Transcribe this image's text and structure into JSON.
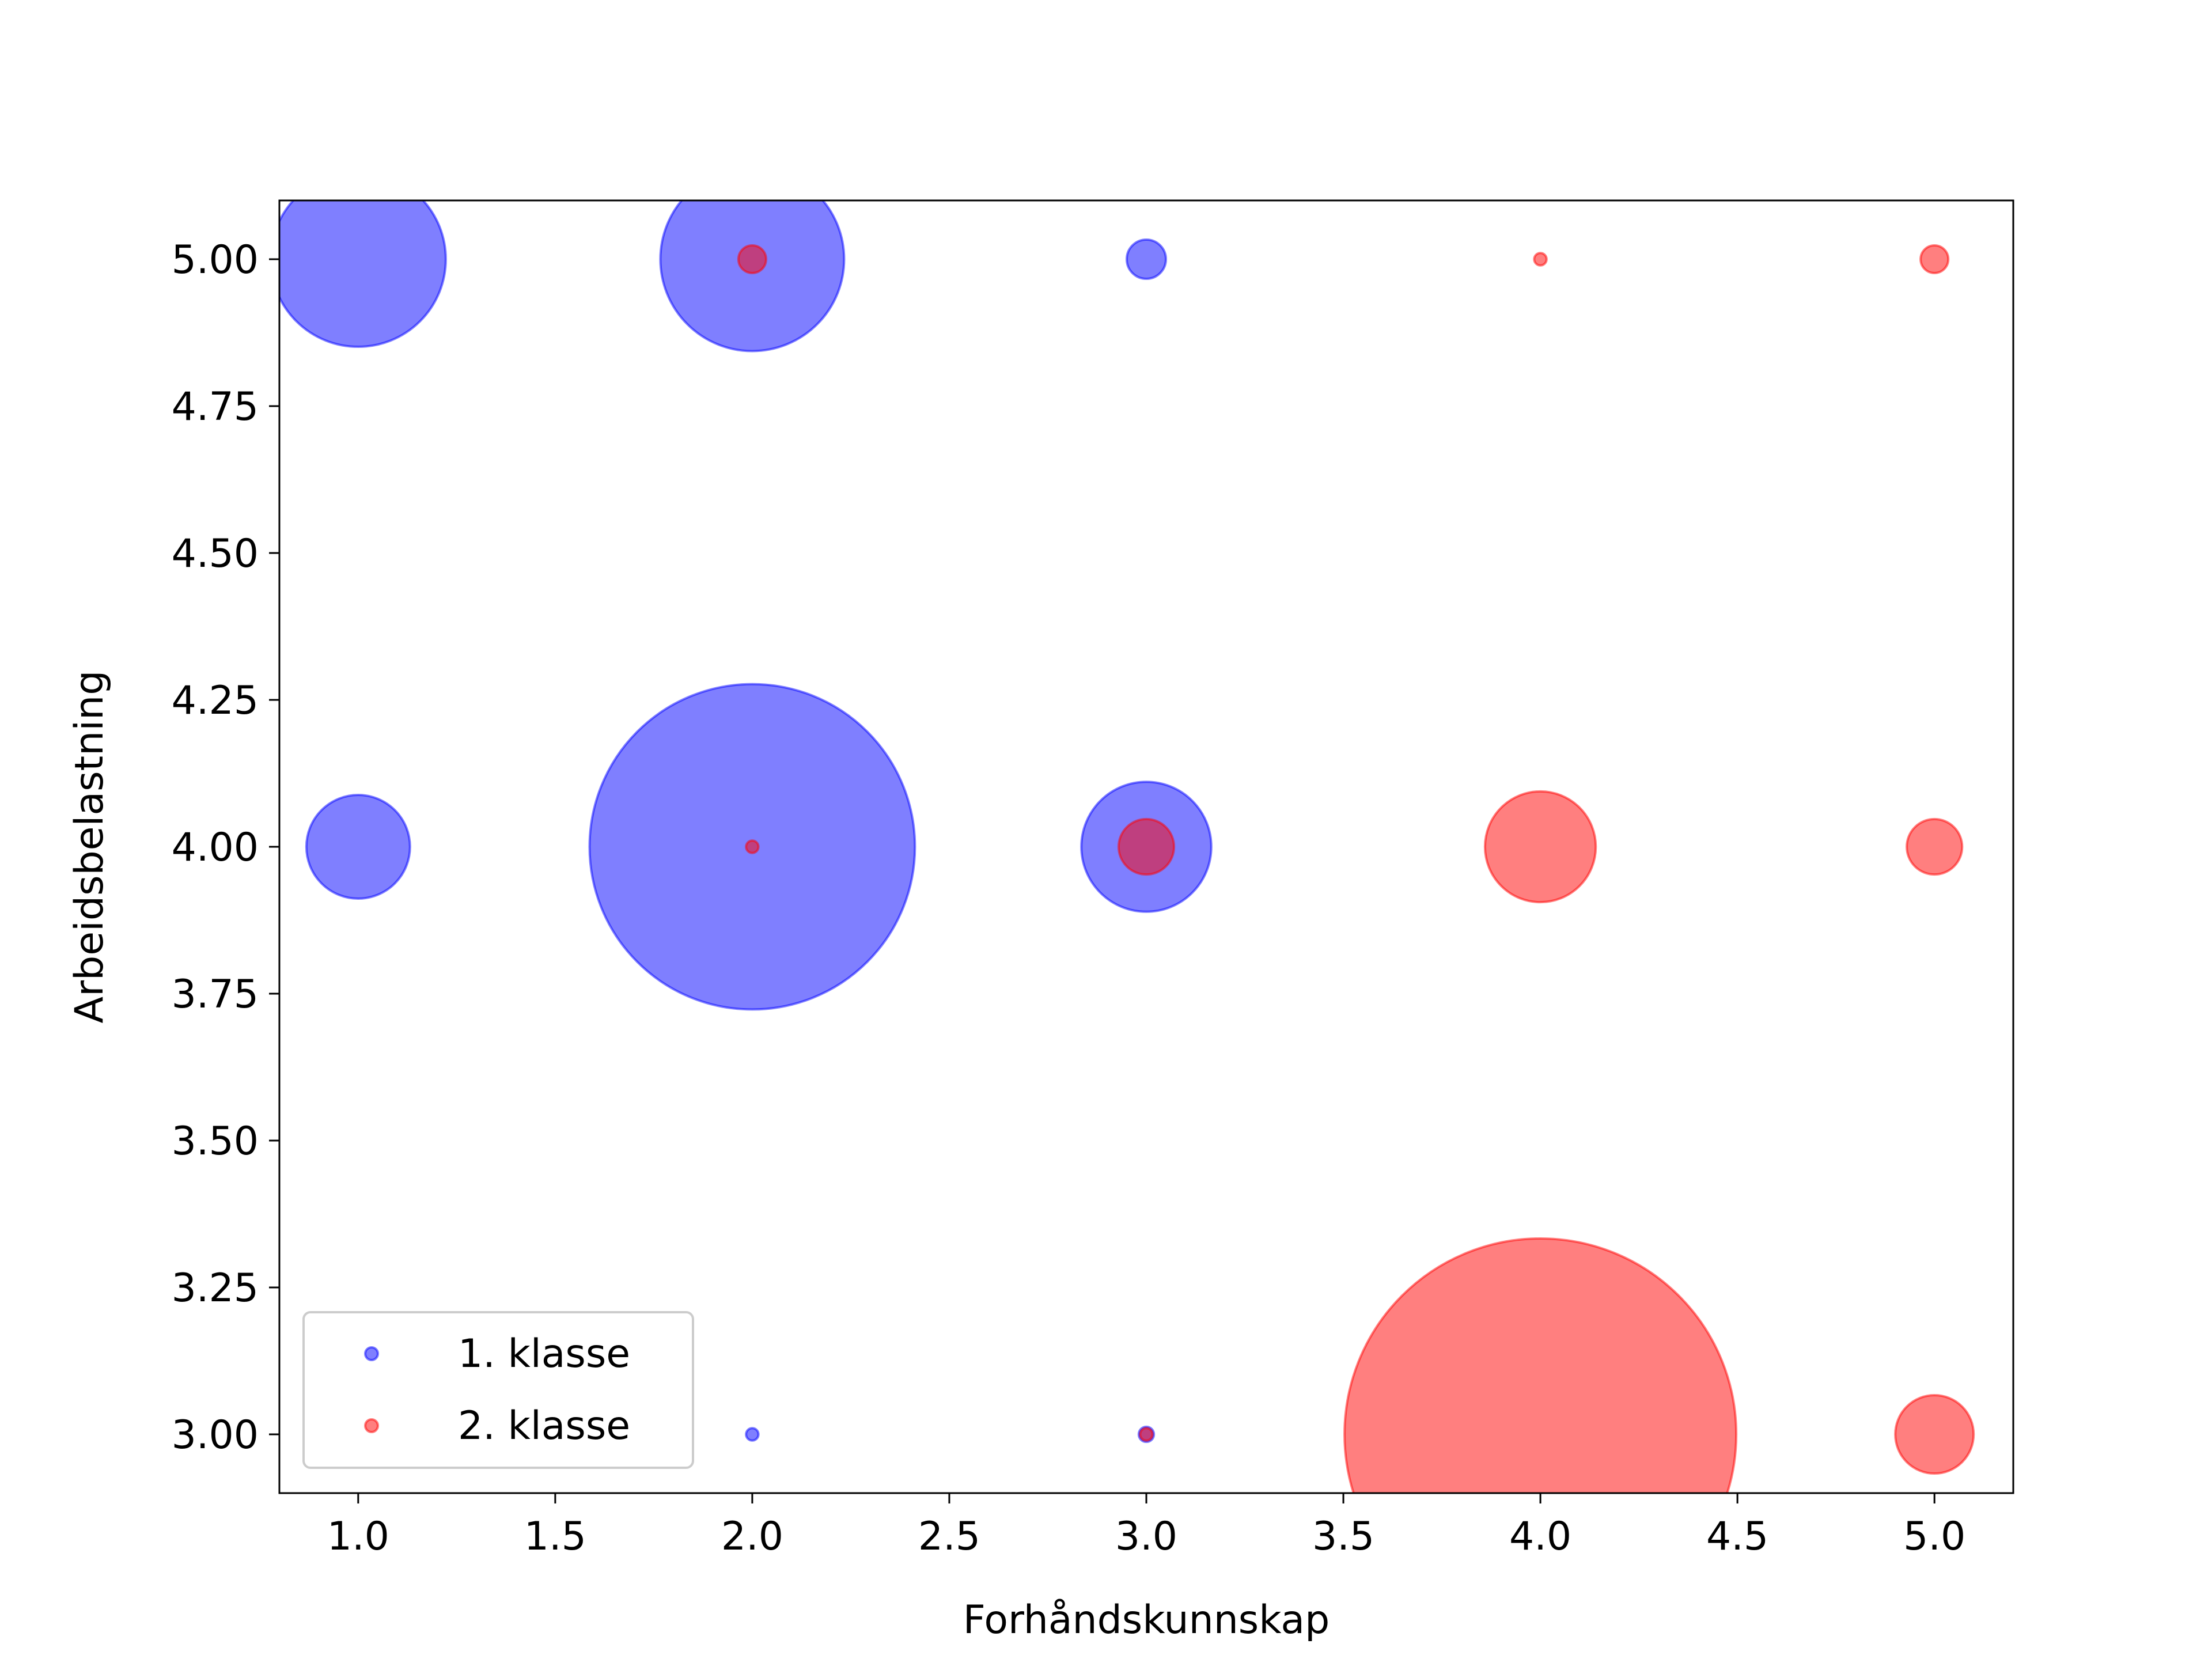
{
  "chart_data": {
    "type": "scatter",
    "title": "",
    "xlabel": "Forhåndskunnskap",
    "ylabel": "Arbeidsbelastning",
    "xlim": [
      0.8,
      5.2
    ],
    "ylim": [
      2.9,
      5.1
    ],
    "xticks": [
      "1.0",
      "1.5",
      "2.0",
      "2.5",
      "3.0",
      "3.5",
      "4.0",
      "4.5",
      "5.0"
    ],
    "yticks": [
      "3.00",
      "3.25",
      "3.50",
      "3.75",
      "4.00",
      "4.25",
      "4.50",
      "4.75",
      "5.00"
    ],
    "grid": false,
    "legend_position": "lower-left",
    "bubble_size_note": "relative bubble size (marker area)",
    "series": [
      {
        "name": "1. klasse",
        "color": "#0000ff",
        "alpha": 0.5,
        "points": [
          {
            "x": 1,
            "y": 5,
            "size": 20
          },
          {
            "x": 2,
            "y": 5,
            "size": 22
          },
          {
            "x": 3,
            "y": 5,
            "size": 1
          },
          {
            "x": 1,
            "y": 4,
            "size": 7
          },
          {
            "x": 2,
            "y": 4,
            "size": 69
          },
          {
            "x": 3,
            "y": 4,
            "size": 11
          },
          {
            "x": 2,
            "y": 3,
            "size": 0.1
          },
          {
            "x": 3,
            "y": 3,
            "size": 0.15
          }
        ]
      },
      {
        "name": "2. klasse",
        "color": "#ff0000",
        "alpha": 0.5,
        "points": [
          {
            "x": 2,
            "y": 5,
            "size": 0.5
          },
          {
            "x": 4,
            "y": 5,
            "size": 0.1
          },
          {
            "x": 5,
            "y": 5,
            "size": 0.5
          },
          {
            "x": 2,
            "y": 4,
            "size": 0.1
          },
          {
            "x": 3,
            "y": 4,
            "size": 2
          },
          {
            "x": 4,
            "y": 4,
            "size": 8
          },
          {
            "x": 5,
            "y": 4,
            "size": 2
          },
          {
            "x": 3,
            "y": 3,
            "size": 0.1
          },
          {
            "x": 4,
            "y": 3,
            "size": 100
          },
          {
            "x": 5,
            "y": 3,
            "size": 4
          }
        ]
      }
    ]
  }
}
